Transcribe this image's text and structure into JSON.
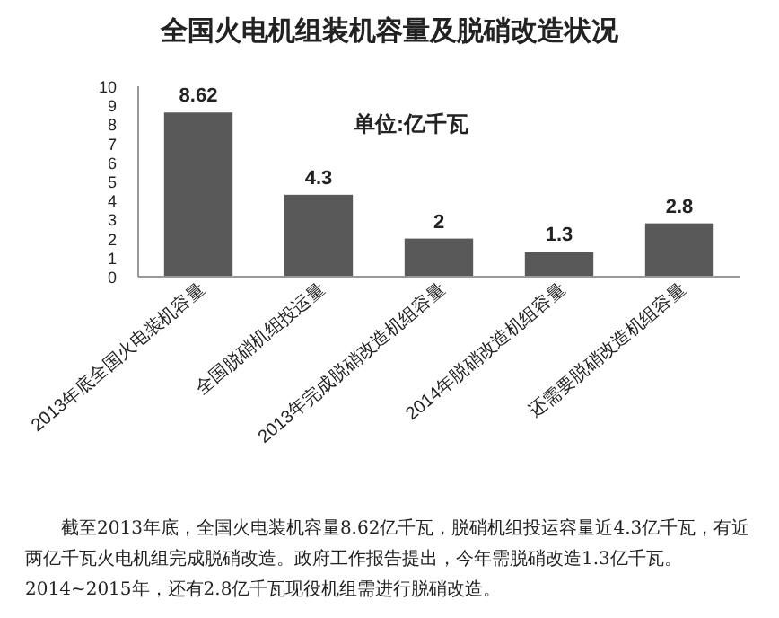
{
  "chart_data": {
    "type": "bar",
    "title": "全国火电机组装机容量及脱硝改造状况",
    "categories": [
      "2013年底全国火电装机容量",
      "全国脱硝机组投运量",
      "2013年完成脱硝改造机组容量",
      "2014年脱硝改造机组容量",
      "还需要脱硝改造机组容量"
    ],
    "values": [
      8.62,
      4.3,
      2,
      1.3,
      2.8
    ],
    "color": "#595959",
    "data_labels": true,
    "ylim": [
      0,
      10
    ],
    "yticks": [
      0,
      1,
      2,
      3,
      4,
      5,
      6,
      7,
      8,
      9,
      10
    ],
    "grid": false,
    "annotations": [
      "单位:亿千瓦",
      "截至2013年底，全国火电装机容量8.62亿千瓦，脱硝机组投运容量近4.3亿千瓦，有近两亿千瓦火电机组完成脱硝改造。政府工作报告提出，今年需脱硝改造1.3亿千瓦。2014~2015年，还有2.8亿千瓦现役机组需进行脱硝改造。"
    ]
  }
}
